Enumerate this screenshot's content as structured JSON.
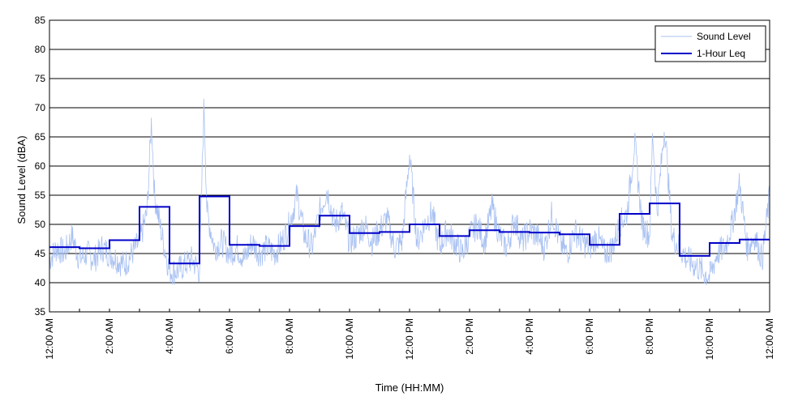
{
  "chart_data": {
    "type": "line",
    "title": "",
    "xlabel": "Time (HH:MM)",
    "ylabel": "Sound Level (dBA)",
    "xlim_hours": [
      0,
      24
    ],
    "ylim": [
      35,
      85
    ],
    "y_ticks": [
      35,
      40,
      45,
      50,
      55,
      60,
      65,
      70,
      75,
      80,
      85
    ],
    "x_tick_hours": [
      0,
      2,
      4,
      6,
      8,
      10,
      12,
      14,
      16,
      18,
      20,
      22,
      24
    ],
    "x_tick_labels": [
      "12:00 AM",
      "2:00 AM",
      "4:00 AM",
      "6:00 AM",
      "8:00 AM",
      "10:00 AM",
      "12:00 PM",
      "2:00 PM",
      "4:00 PM",
      "6:00 PM",
      "8:00 PM",
      "10:00 PM",
      "12:00 AM"
    ],
    "grid": "horizontal",
    "legend_position": "top-right",
    "series": [
      {
        "name": "Sound Level",
        "color": "#a9c1f2",
        "style": "thin line",
        "x_hours": [
          0.0,
          0.25,
          0.5,
          0.75,
          1.0,
          1.25,
          1.5,
          1.75,
          2.0,
          2.25,
          2.5,
          2.75,
          3.0,
          3.25,
          3.4,
          3.5,
          3.75,
          4.0,
          4.25,
          4.5,
          4.75,
          5.0,
          5.15,
          5.25,
          5.5,
          5.75,
          6.0,
          6.25,
          6.5,
          6.75,
          7.0,
          7.25,
          7.5,
          7.75,
          8.0,
          8.25,
          8.5,
          8.75,
          9.0,
          9.25,
          9.5,
          9.75,
          10.0,
          10.25,
          10.5,
          10.75,
          11.0,
          11.25,
          11.5,
          11.75,
          12.0,
          12.25,
          12.5,
          12.75,
          13.0,
          13.25,
          13.5,
          13.75,
          14.0,
          14.25,
          14.5,
          14.75,
          15.0,
          15.25,
          15.5,
          15.75,
          16.0,
          16.25,
          16.5,
          16.75,
          17.0,
          17.25,
          17.5,
          17.75,
          18.0,
          18.25,
          18.5,
          18.75,
          19.0,
          19.25,
          19.5,
          19.75,
          20.0,
          20.1,
          20.25,
          20.5,
          20.75,
          21.0,
          21.25,
          21.5,
          21.75,
          22.0,
          22.25,
          22.5,
          22.75,
          23.0,
          23.25,
          23.5,
          23.75,
          24.0
        ],
        "y_dBA": [
          44,
          46,
          45,
          48,
          44,
          45,
          44,
          46,
          45,
          44,
          43,
          45,
          47,
          52,
          68,
          55,
          48,
          42,
          42,
          43,
          44,
          42,
          71,
          52,
          46,
          47,
          45,
          46,
          44,
          47,
          45,
          46,
          45,
          47,
          50,
          55,
          48,
          46,
          52,
          56,
          50,
          52,
          47,
          48,
          50,
          47,
          49,
          51,
          46,
          47,
          62,
          47,
          50,
          52,
          46,
          49,
          47,
          45,
          48,
          50,
          47,
          53,
          48,
          46,
          51,
          47,
          49,
          48,
          46,
          52,
          47,
          45,
          49,
          47,
          46,
          48,
          45,
          46,
          50,
          52,
          64,
          50,
          48,
          66,
          52,
          67,
          48,
          46,
          44,
          43,
          42,
          41,
          45,
          46,
          50,
          57,
          46,
          48,
          44,
          55
        ]
      },
      {
        "name": "1-Hour Leq",
        "color": "#0000c8",
        "style": "step",
        "hour_start": [
          0,
          1,
          2,
          3,
          4,
          5,
          6,
          7,
          8,
          9,
          10,
          11,
          12,
          13,
          14,
          15,
          16,
          17,
          18,
          19,
          20,
          21,
          22,
          23
        ],
        "leq_dBA": [
          46.1,
          45.9,
          47.3,
          53.0,
          43.3,
          54.8,
          46.5,
          46.3,
          49.7,
          51.5,
          48.5,
          48.7,
          50.0,
          48.0,
          49.0,
          48.7,
          48.6,
          48.3,
          46.5,
          51.8,
          53.6,
          44.6,
          46.8,
          47.4
        ]
      }
    ]
  }
}
